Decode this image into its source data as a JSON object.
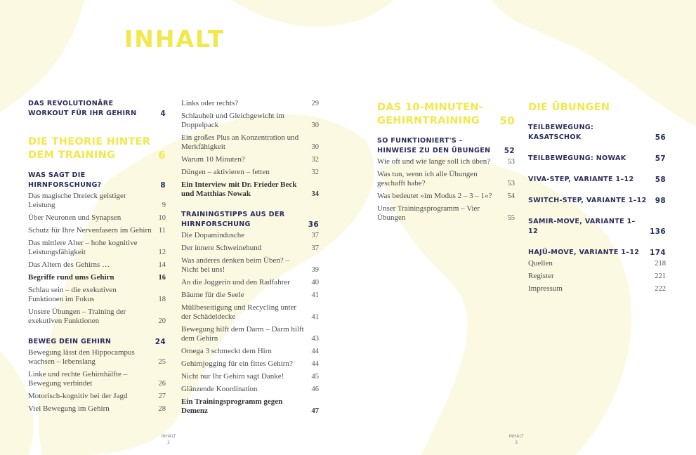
{
  "title": "INHALT",
  "colors": {
    "accent_yellow": "#f2e84b",
    "navy": "#2b2e5e",
    "background_blob": "#fcf9e2"
  },
  "columns": [
    [
      {
        "type": "s",
        "text": "DAS REVOLUTIONÄRE WORKOUT FÜR IHR GEHIRN",
        "page": "4"
      },
      {
        "type": "h",
        "text": "DIE THEORIE HINTER DEM TRAINING",
        "page": "6"
      },
      {
        "type": "s",
        "text": "WAS SAGT DIE HIRNFORSCHUNG?",
        "page": "8"
      },
      {
        "type": "e",
        "text": "Das magische Dreieck geistiger Leistung",
        "page": "9"
      },
      {
        "type": "e",
        "text": "Über Neuronen und Synapsen",
        "page": "10"
      },
      {
        "type": "e",
        "text": "Schutz für Ihre Nervenfasern im Gehirn",
        "page": "11"
      },
      {
        "type": "e",
        "text": "Das mittlere Alter – hohe kognitive Leistungsfähigkeit",
        "page": "12"
      },
      {
        "type": "e",
        "text": "Das Altern des Gehirns …",
        "page": "14"
      },
      {
        "type": "b",
        "text": "Begriffe rund ums Gehirn",
        "page": "16"
      },
      {
        "type": "e",
        "text": "Schlau sein – die exekutiven Funktionen im Fokus",
        "page": "18"
      },
      {
        "type": "e",
        "text": "Unsere Übungen – Training der exekutiven Funktionen",
        "page": "20"
      },
      {
        "type": "s",
        "text": "BEWEG DEIN GEHIRN",
        "page": "24"
      },
      {
        "type": "e",
        "text": "Bewegung lässt den Hippocampus wachsen – lebenslang",
        "page": "25"
      },
      {
        "type": "e",
        "text": "Linke und rechte Gehirnhälfte – Bewegung verbindet",
        "page": "26"
      },
      {
        "type": "e",
        "text": "Motorisch-kognitiv bei der Jagd",
        "page": "27"
      },
      {
        "type": "e",
        "text": "Viel Bewegung im Gehirn",
        "page": "28"
      }
    ],
    [
      {
        "type": "e",
        "text": "Links oder rechts?",
        "page": "29"
      },
      {
        "type": "e",
        "text": "Schlauheit und Gleichgewicht im Doppelpack",
        "page": "30"
      },
      {
        "type": "e",
        "text": "Ein großes Plus an Konzentration und Merkfähigkeit",
        "page": "30"
      },
      {
        "type": "e",
        "text": "Warum 10 Minuten?",
        "page": "32"
      },
      {
        "type": "e",
        "text": "Düngen – aktivieren – fetten",
        "page": "32"
      },
      {
        "type": "b",
        "text": "Ein Interview mit Dr. Frieder Beck und Matthias Nowak",
        "page": "34"
      },
      {
        "type": "s",
        "text": "TRAININGSTIPPS AUS DER HIRNFORSCHUNG",
        "page": "36"
      },
      {
        "type": "e",
        "text": "Die Dopamindusche",
        "page": "37"
      },
      {
        "type": "e",
        "text": "Der innere Schweinehund",
        "page": "37"
      },
      {
        "type": "e",
        "text": "Was anderes denken beim Üben? – Nicht bei uns!",
        "page": "39"
      },
      {
        "type": "e",
        "text": "An die Joggerin und den Radfahrer",
        "page": "40"
      },
      {
        "type": "e",
        "text": "Bäume für die Seele",
        "page": "41"
      },
      {
        "type": "e",
        "text": "Müllbeseitigung und Recycling unter der Schädeldecke",
        "page": "41"
      },
      {
        "type": "e",
        "text": "Bewegung hilft dem Darm – Darm hilft dem Gehirn",
        "page": "43"
      },
      {
        "type": "e",
        "text": "Omega 3 schmeckt dem Hirn",
        "page": "44"
      },
      {
        "type": "e",
        "text": "Gehirnjogging für ein fittes Gehirn?",
        "page": "44"
      },
      {
        "type": "e",
        "text": "Nicht nur Ihr Gehirn sagt Danke!",
        "page": "45"
      },
      {
        "type": "e",
        "text": "Glänzende Koordination",
        "page": "46"
      },
      {
        "type": "b",
        "text": "Ein Trainingsprogramm gegen Demenz",
        "page": "47"
      }
    ],
    [
      {
        "type": "h",
        "text": "DAS 10-MINUTEN-GEHIRNTRAINING",
        "page": "50"
      },
      {
        "type": "s",
        "text": "SO FUNKTIONIERT'S – HINWEISE ZU DEN ÜBUNGEN",
        "page": "52"
      },
      {
        "type": "e",
        "text": "Wie oft und wie lange soll ich üben?",
        "page": "53"
      },
      {
        "type": "e",
        "text": "Was tun, wenn ich alle Übungen geschafft habe?",
        "page": "53"
      },
      {
        "type": "e",
        "text": "Was bedeutet »im Modus 2 – 3 – 1«?",
        "page": "54"
      },
      {
        "type": "e",
        "text": "Unser Trainingsprogramm – Vier Übungen",
        "page": "55"
      }
    ],
    [
      {
        "type": "h",
        "text": "DIE ÜBUNGEN",
        "page": ""
      },
      {
        "type": "s",
        "text": "TEILBEWEGUNG: KASATSCHOK",
        "page": "56"
      },
      {
        "type": "s",
        "text": "TEILBEWEGUNG: NOWAK",
        "page": "57"
      },
      {
        "type": "s",
        "text": "VIVA-STEP, VARIANTE 1–12",
        "page": "58"
      },
      {
        "type": "s",
        "text": "SWITCH-STEP, VARIANTE 1–12",
        "page": "98"
      },
      {
        "type": "s",
        "text": "SAMIR-MOVE, VARIANTE 1–12",
        "page": "136"
      },
      {
        "type": "s",
        "text": "HAJÜ-MOVE, VARIANTE 1–12",
        "page": "174"
      },
      {
        "type": "e",
        "text": "Quellen",
        "page": "218"
      },
      {
        "type": "e",
        "text": "Register",
        "page": "221"
      },
      {
        "type": "e",
        "text": "Impressum",
        "page": "222"
      }
    ]
  ],
  "footers": [
    {
      "label": "INHALT",
      "page": "2"
    },
    {
      "label": "INHALT",
      "page": "3"
    }
  ]
}
